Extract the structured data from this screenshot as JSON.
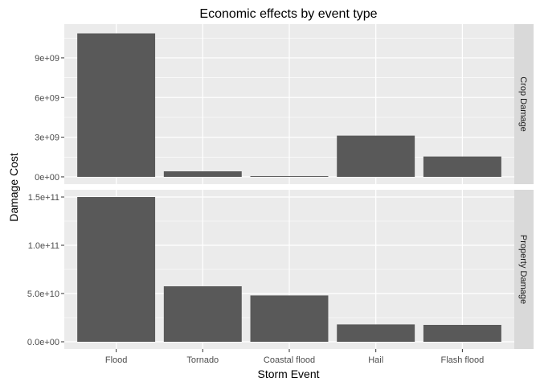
{
  "chart_data": {
    "type": "bar",
    "title": "Economic effects by event type",
    "xlabel": "Storm Event",
    "ylabel": "Damage Cost",
    "categories": [
      "Flood",
      "Tornado",
      "Coastal flood",
      "Hail",
      "Flash flood"
    ],
    "bar_color": "#595959",
    "panel_background": "#ebebeb",
    "strip_background": "#d9d9d9",
    "grid": true,
    "facets": [
      {
        "name": "Crop Damage",
        "values": [
          10850000000,
          420000000,
          60000000,
          3120000000,
          1540000000
        ],
        "ylim": [
          -550000000,
          11550000000
        ],
        "ticks": [
          0,
          3000000000,
          6000000000,
          9000000000
        ],
        "tick_labels": [
          "0e+00",
          "3e+09",
          "6e+09",
          "9e+09"
        ],
        "minor_ticks": [
          1500000000,
          4500000000,
          7500000000,
          10500000000
        ]
      },
      {
        "name": "Property Damage",
        "values": [
          150000000000,
          57500000000,
          48000000000,
          18000000000,
          17500000000
        ],
        "ylim": [
          -7500000000,
          157500000000
        ],
        "ticks": [
          0,
          50000000000,
          100000000000,
          150000000000
        ],
        "tick_labels": [
          "0.0e+00",
          "5.0e+10",
          "1.0e+11",
          "1.5e+11"
        ],
        "minor_ticks": [
          25000000000,
          75000000000,
          125000000000
        ]
      }
    ]
  }
}
